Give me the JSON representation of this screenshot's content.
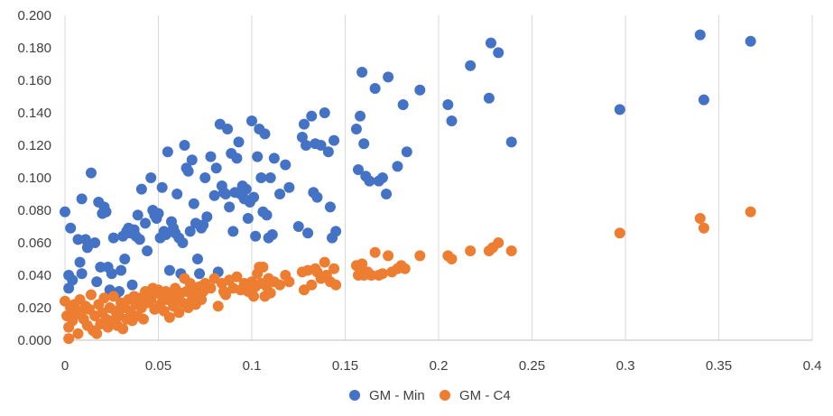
{
  "chart_data": {
    "type": "scatter",
    "title": "",
    "xlabel": "",
    "ylabel": "",
    "xlim": [
      0,
      0.4
    ],
    "ylim": [
      0,
      0.2
    ],
    "x_ticks": [
      "0",
      "0.05",
      "0.1",
      "0.15",
      "0.2",
      "0.25",
      "0.3",
      "0.35",
      "0.4"
    ],
    "y_ticks": [
      "0.000",
      "0.020",
      "0.040",
      "0.060",
      "0.080",
      "0.100",
      "0.120",
      "0.140",
      "0.160",
      "0.180",
      "0.200"
    ],
    "grid": "vertical",
    "legend": "bottom",
    "series": [
      {
        "name": "GM - Min",
        "color": "#4472C4",
        "points": [
          [
            0.0,
            0.079
          ],
          [
            0.002,
            0.04
          ],
          [
            0.003,
            0.069
          ],
          [
            0.002,
            0.032
          ],
          [
            0.004,
            0.037
          ],
          [
            0.007,
            0.062
          ],
          [
            0.008,
            0.048
          ],
          [
            0.009,
            0.087
          ],
          [
            0.009,
            0.041
          ],
          [
            0.011,
            0.062
          ],
          [
            0.012,
            0.057
          ],
          [
            0.014,
            0.103
          ],
          [
            0.016,
            0.06
          ],
          [
            0.017,
            0.036
          ],
          [
            0.018,
            0.085
          ],
          [
            0.019,
            0.045
          ],
          [
            0.02,
            0.078
          ],
          [
            0.021,
            0.082
          ],
          [
            0.022,
            0.079
          ],
          [
            0.023,
            0.045
          ],
          [
            0.024,
            0.031
          ],
          [
            0.025,
            0.041
          ],
          [
            0.026,
            0.063
          ],
          [
            0.027,
            0.028
          ],
          [
            0.029,
            0.03
          ],
          [
            0.03,
            0.043
          ],
          [
            0.031,
            0.064
          ],
          [
            0.032,
            0.05
          ],
          [
            0.033,
            0.067
          ],
          [
            0.034,
            0.069
          ],
          [
            0.035,
            0.066
          ],
          [
            0.036,
            0.034
          ],
          [
            0.037,
            0.068
          ],
          [
            0.038,
            0.064
          ],
          [
            0.039,
            0.077
          ],
          [
            0.04,
            0.062
          ],
          [
            0.041,
            0.093
          ],
          [
            0.043,
            0.072
          ],
          [
            0.044,
            0.055
          ],
          [
            0.046,
            0.1
          ],
          [
            0.047,
            0.08
          ],
          [
            0.048,
            0.077
          ],
          [
            0.049,
            0.075
          ],
          [
            0.05,
            0.078
          ],
          [
            0.051,
            0.063
          ],
          [
            0.052,
            0.094
          ],
          [
            0.053,
            0.067
          ],
          [
            0.054,
            0.065
          ],
          [
            0.055,
            0.116
          ],
          [
            0.056,
            0.043
          ],
          [
            0.057,
            0.073
          ],
          [
            0.058,
            0.069
          ],
          [
            0.059,
            0.066
          ],
          [
            0.06,
            0.09
          ],
          [
            0.061,
            0.063
          ],
          [
            0.062,
            0.041
          ],
          [
            0.063,
            0.06
          ],
          [
            0.064,
            0.12
          ],
          [
            0.065,
            0.106
          ],
          [
            0.066,
            0.104
          ],
          [
            0.067,
            0.067
          ],
          [
            0.068,
            0.111
          ],
          [
            0.069,
            0.084
          ],
          [
            0.07,
            0.072
          ],
          [
            0.071,
            0.05
          ],
          [
            0.072,
            0.041
          ],
          [
            0.073,
            0.069
          ],
          [
            0.074,
            0.071
          ],
          [
            0.075,
            0.1
          ],
          [
            0.076,
            0.076
          ],
          [
            0.078,
            0.113
          ],
          [
            0.08,
            0.089
          ],
          [
            0.081,
            0.106
          ],
          [
            0.082,
            0.042
          ],
          [
            0.083,
            0.133
          ],
          [
            0.084,
            0.095
          ],
          [
            0.085,
            0.091
          ],
          [
            0.086,
            0.09
          ],
          [
            0.087,
            0.13
          ],
          [
            0.088,
            0.082
          ],
          [
            0.089,
            0.115
          ],
          [
            0.09,
            0.067
          ],
          [
            0.091,
            0.091
          ],
          [
            0.092,
            0.112
          ],
          [
            0.093,
            0.122
          ],
          [
            0.094,
            0.09
          ],
          [
            0.095,
            0.095
          ],
          [
            0.096,
            0.087
          ],
          [
            0.097,
            0.093
          ],
          [
            0.098,
            0.075
          ],
          [
            0.099,
            0.085
          ],
          [
            0.1,
            0.135
          ],
          [
            0.101,
            0.088
          ],
          [
            0.102,
            0.064
          ],
          [
            0.103,
            0.113
          ],
          [
            0.104,
            0.13
          ],
          [
            0.105,
            0.1
          ],
          [
            0.106,
            0.079
          ],
          [
            0.107,
            0.127
          ],
          [
            0.108,
            0.077
          ],
          [
            0.109,
            0.063
          ],
          [
            0.11,
            0.1
          ],
          [
            0.111,
            0.065
          ],
          [
            0.112,
            0.112
          ],
          [
            0.115,
            0.09
          ],
          [
            0.118,
            0.108
          ],
          [
            0.12,
            0.094
          ],
          [
            0.125,
            0.07
          ],
          [
            0.127,
            0.125
          ],
          [
            0.128,
            0.133
          ],
          [
            0.129,
            0.12
          ],
          [
            0.13,
            0.066
          ],
          [
            0.132,
            0.138
          ],
          [
            0.133,
            0.091
          ],
          [
            0.134,
            0.121
          ],
          [
            0.135,
            0.088
          ],
          [
            0.137,
            0.12
          ],
          [
            0.139,
            0.14
          ],
          [
            0.141,
            0.116
          ],
          [
            0.142,
            0.082
          ],
          [
            0.143,
            0.063
          ],
          [
            0.144,
            0.123
          ],
          [
            0.145,
            0.067
          ],
          [
            0.156,
            0.13
          ],
          [
            0.157,
            0.105
          ],
          [
            0.158,
            0.138
          ],
          [
            0.159,
            0.165
          ],
          [
            0.16,
            0.121
          ],
          [
            0.161,
            0.101
          ],
          [
            0.163,
            0.098
          ],
          [
            0.166,
            0.155
          ],
          [
            0.168,
            0.098
          ],
          [
            0.17,
            0.1
          ],
          [
            0.172,
            0.09
          ],
          [
            0.173,
            0.162
          ],
          [
            0.178,
            0.107
          ],
          [
            0.181,
            0.145
          ],
          [
            0.183,
            0.116
          ],
          [
            0.19,
            0.154
          ],
          [
            0.205,
            0.145
          ],
          [
            0.207,
            0.135
          ],
          [
            0.217,
            0.169
          ],
          [
            0.227,
            0.149
          ],
          [
            0.228,
            0.183
          ],
          [
            0.232,
            0.177
          ],
          [
            0.239,
            0.122
          ],
          [
            0.297,
            0.142
          ],
          [
            0.34,
            0.188
          ],
          [
            0.342,
            0.148
          ],
          [
            0.367,
            0.184
          ]
        ]
      },
      {
        "name": "GM - C4",
        "color": "#ED7D31",
        "points": [
          [
            0.0,
            0.024
          ],
          [
            0.001,
            0.015
          ],
          [
            0.002,
            0.008
          ],
          [
            0.002,
            0.001
          ],
          [
            0.003,
            0.02
          ],
          [
            0.004,
            0.012
          ],
          [
            0.005,
            0.022
          ],
          [
            0.006,
            0.016
          ],
          [
            0.007,
            0.004
          ],
          [
            0.008,
            0.025
          ],
          [
            0.009,
            0.018
          ],
          [
            0.01,
            0.013
          ],
          [
            0.011,
            0.021
          ],
          [
            0.012,
            0.009
          ],
          [
            0.013,
            0.019
          ],
          [
            0.014,
            0.028
          ],
          [
            0.015,
            0.006
          ],
          [
            0.016,
            0.015
          ],
          [
            0.017,
            0.004
          ],
          [
            0.018,
            0.022
          ],
          [
            0.019,
            0.01
          ],
          [
            0.02,
            0.017
          ],
          [
            0.021,
            0.026
          ],
          [
            0.022,
            0.013
          ],
          [
            0.023,
            0.008
          ],
          [
            0.024,
            0.02
          ],
          [
            0.025,
            0.012
          ],
          [
            0.026,
            0.027
          ],
          [
            0.027,
            0.018
          ],
          [
            0.028,
            0.009
          ],
          [
            0.029,
            0.015
          ],
          [
            0.03,
            0.023
          ],
          [
            0.031,
            0.007
          ],
          [
            0.032,
            0.02
          ],
          [
            0.033,
            0.013
          ],
          [
            0.034,
            0.025
          ],
          [
            0.035,
            0.018
          ],
          [
            0.036,
            0.012
          ],
          [
            0.037,
            0.027
          ],
          [
            0.038,
            0.022
          ],
          [
            0.039,
            0.015
          ],
          [
            0.04,
            0.026
          ],
          [
            0.041,
            0.02
          ],
          [
            0.042,
            0.013
          ],
          [
            0.043,
            0.03
          ],
          [
            0.044,
            0.023
          ],
          [
            0.045,
            0.028
          ],
          [
            0.046,
            0.025
          ],
          [
            0.047,
            0.032
          ],
          [
            0.048,
            0.019
          ],
          [
            0.049,
            0.029
          ],
          [
            0.05,
            0.031
          ],
          [
            0.051,
            0.022
          ],
          [
            0.052,
            0.027
          ],
          [
            0.053,
            0.018
          ],
          [
            0.054,
            0.03
          ],
          [
            0.055,
            0.025
          ],
          [
            0.056,
            0.014
          ],
          [
            0.057,
            0.028
          ],
          [
            0.058,
            0.021
          ],
          [
            0.059,
            0.032
          ],
          [
            0.06,
            0.026
          ],
          [
            0.061,
            0.017
          ],
          [
            0.062,
            0.029
          ],
          [
            0.063,
            0.023
          ],
          [
            0.064,
            0.038
          ],
          [
            0.065,
            0.03
          ],
          [
            0.066,
            0.02
          ],
          [
            0.067,
            0.035
          ],
          [
            0.068,
            0.025
          ],
          [
            0.069,
            0.031
          ],
          [
            0.07,
            0.022
          ],
          [
            0.071,
            0.027
          ],
          [
            0.072,
            0.033
          ],
          [
            0.073,
            0.025
          ],
          [
            0.074,
            0.03
          ],
          [
            0.075,
            0.035
          ],
          [
            0.078,
            0.032
          ],
          [
            0.08,
            0.038
          ],
          [
            0.082,
            0.021
          ],
          [
            0.084,
            0.035
          ],
          [
            0.085,
            0.03
          ],
          [
            0.086,
            0.028
          ],
          [
            0.088,
            0.037
          ],
          [
            0.09,
            0.032
          ],
          [
            0.092,
            0.039
          ],
          [
            0.094,
            0.031
          ],
          [
            0.096,
            0.035
          ],
          [
            0.098,
            0.03
          ],
          [
            0.1,
            0.036
          ],
          [
            0.101,
            0.027
          ],
          [
            0.102,
            0.033
          ],
          [
            0.103,
            0.041
          ],
          [
            0.104,
            0.045
          ],
          [
            0.105,
            0.035
          ],
          [
            0.106,
            0.045
          ],
          [
            0.107,
            0.027
          ],
          [
            0.108,
            0.033
          ],
          [
            0.109,
            0.038
          ],
          [
            0.11,
            0.029
          ],
          [
            0.112,
            0.036
          ],
          [
            0.115,
            0.034
          ],
          [
            0.118,
            0.04
          ],
          [
            0.12,
            0.036
          ],
          [
            0.127,
            0.042
          ],
          [
            0.128,
            0.031
          ],
          [
            0.13,
            0.043
          ],
          [
            0.132,
            0.034
          ],
          [
            0.134,
            0.044
          ],
          [
            0.135,
            0.042
          ],
          [
            0.137,
            0.038
          ],
          [
            0.139,
            0.048
          ],
          [
            0.14,
            0.04
          ],
          [
            0.142,
            0.036
          ],
          [
            0.144,
            0.044
          ],
          [
            0.145,
            0.034
          ],
          [
            0.156,
            0.046
          ],
          [
            0.157,
            0.04
          ],
          [
            0.158,
            0.042
          ],
          [
            0.159,
            0.047
          ],
          [
            0.16,
            0.04
          ],
          [
            0.162,
            0.042
          ],
          [
            0.164,
            0.04
          ],
          [
            0.166,
            0.054
          ],
          [
            0.168,
            0.04
          ],
          [
            0.17,
            0.041
          ],
          [
            0.173,
            0.052
          ],
          [
            0.175,
            0.042
          ],
          [
            0.178,
            0.044
          ],
          [
            0.18,
            0.046
          ],
          [
            0.182,
            0.044
          ],
          [
            0.19,
            0.052
          ],
          [
            0.205,
            0.052
          ],
          [
            0.207,
            0.05
          ],
          [
            0.217,
            0.055
          ],
          [
            0.227,
            0.055
          ],
          [
            0.229,
            0.057
          ],
          [
            0.232,
            0.06
          ],
          [
            0.239,
            0.055
          ],
          [
            0.297,
            0.066
          ],
          [
            0.34,
            0.075
          ],
          [
            0.342,
            0.069
          ],
          [
            0.367,
            0.079
          ]
        ]
      }
    ]
  }
}
